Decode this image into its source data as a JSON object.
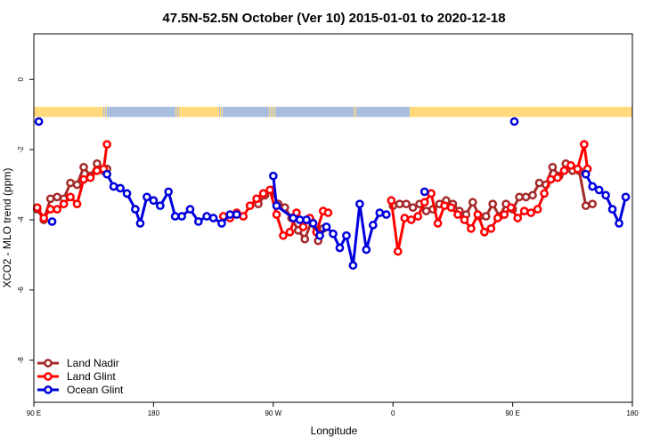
{
  "chart_data": {
    "type": "line",
    "title": "47.5N-52.5N October (Ver 10)   2015-01-01 to 2020-12-18",
    "xlabel": "Longitude",
    "ylabel": "XCO2 - MLO trend (ppm)",
    "xlim": [
      90,
      450
    ],
    "ylim": [
      -9.2,
      1.3
    ],
    "x_ticks": [
      {
        "value": 90,
        "label": "90 E"
      },
      {
        "value": 162,
        "label": "180"
      },
      {
        "value": 234,
        "label": "90 W"
      },
      {
        "value": 306,
        "label": "0"
      },
      {
        "value": 378,
        "label": "90 E"
      },
      {
        "value": 450,
        "label": "180"
      }
    ],
    "y_ticks": [
      0,
      -2,
      -4,
      -6,
      -8
    ],
    "grid": false,
    "legend_position": "bottom-left",
    "land_ocean_strip": {
      "y_range": [
        -1.07,
        -0.78
      ],
      "land_color": "#FFD97A",
      "ocean_color": "#A9BEDF"
    },
    "series": [
      {
        "name": "Land Nadir",
        "color": "#A52A2A",
        "x": [
          92,
          96,
          100,
          104,
          108,
          112,
          116,
          120,
          124,
          128,
          132,
          134,
          225,
          229,
          233,
          237,
          241,
          245,
          249,
          253,
          257,
          261,
          264,
          306,
          310,
          314,
          318,
          322,
          326,
          330,
          334,
          338,
          342,
          346,
          350,
          354,
          358,
          362,
          366,
          370,
          374,
          378,
          382,
          386,
          390,
          394,
          398,
          402,
          406,
          410,
          414,
          418,
          422,
          426
        ],
        "y": [
          -3.7,
          -4.0,
          -3.4,
          -3.35,
          -3.4,
          -2.95,
          -3.0,
          -2.5,
          -2.75,
          -2.4,
          -2.6,
          -2.55,
          -3.55,
          -3.3,
          -3.15,
          -3.55,
          -3.65,
          -3.95,
          -4.3,
          -4.55,
          -4.05,
          -4.6,
          -4.25,
          -3.6,
          -3.55,
          -3.55,
          -3.65,
          -3.55,
          -3.75,
          -3.7,
          -3.55,
          -3.45,
          -3.55,
          -3.75,
          -3.85,
          -3.5,
          -3.9,
          -3.9,
          -3.55,
          -3.9,
          -3.55,
          -3.7,
          -3.35,
          -3.35,
          -3.3,
          -2.95,
          -3.0,
          -2.5,
          -2.75,
          -2.4,
          -2.6,
          -2.6,
          -3.6,
          -3.55
        ]
      },
      {
        "name": "Land Glint",
        "color": "#FF0000",
        "x": [
          92,
          96,
          100,
          104,
          108,
          112,
          116,
          120,
          124,
          128,
          132,
          134,
          204,
          208,
          212,
          216,
          220,
          224,
          228,
          232,
          236,
          240,
          244,
          248,
          252,
          256,
          260,
          264,
          267,
          305,
          309,
          313,
          317,
          321,
          325,
          329,
          333,
          337,
          341,
          345,
          349,
          353,
          357,
          361,
          365,
          369,
          373,
          377,
          381,
          385,
          389,
          393,
          397,
          401,
          405,
          409,
          413,
          417,
          421,
          423
        ],
        "y": [
          -3.65,
          -3.95,
          -3.7,
          -3.7,
          -3.55,
          -3.35,
          -3.55,
          -2.85,
          -2.8,
          -2.6,
          -2.55,
          -1.85,
          -3.9,
          -3.95,
          -3.8,
          -3.9,
          -3.6,
          -3.4,
          -3.25,
          -3.15,
          -3.85,
          -4.45,
          -4.35,
          -3.8,
          -4.2,
          -3.95,
          -4.35,
          -3.75,
          -3.8,
          -3.45,
          -4.9,
          -3.95,
          -4.0,
          -3.9,
          -3.5,
          -3.25,
          -4.1,
          -3.6,
          -3.65,
          -3.85,
          -4.0,
          -4.25,
          -3.85,
          -4.35,
          -4.25,
          -3.95,
          -3.85,
          -3.65,
          -3.95,
          -3.75,
          -3.8,
          -3.7,
          -3.25,
          -2.85,
          -2.8,
          -2.6,
          -2.45,
          -2.55,
          -1.85,
          -2.55
        ]
      },
      {
        "name": "Ocean Glint",
        "color": "#0000DD",
        "x": [
          101,
          134,
          138,
          142,
          146,
          151,
          154,
          158,
          162,
          166,
          171,
          175,
          179,
          184,
          189,
          194,
          198,
          203,
          208,
          212,
          234,
          236,
          246,
          250,
          254,
          258,
          262,
          266,
          270,
          274,
          278,
          282,
          286,
          290,
          294,
          298,
          302,
          325,
          422,
          426,
          430,
          434,
          438,
          442,
          446
        ],
        "y": [
          -4.05,
          -2.7,
          -3.05,
          -3.1,
          -3.25,
          -3.7,
          -4.1,
          -3.35,
          -3.45,
          -3.6,
          -3.2,
          -3.9,
          -3.9,
          -3.7,
          -4.05,
          -3.9,
          -3.95,
          -4.1,
          -3.85,
          -3.85,
          -2.75,
          -3.6,
          -3.95,
          -4.0,
          -4.0,
          -4.1,
          -4.45,
          -4.2,
          -4.4,
          -4.8,
          -4.45,
          -5.3,
          -3.55,
          -4.85,
          -4.15,
          -3.8,
          -3.85,
          -3.2,
          -2.7,
          -3.05,
          -3.15,
          -3.3,
          -3.7,
          -4.1,
          -3.35
        ]
      }
    ],
    "outliers": [
      {
        "series": "Ocean Glint",
        "x": 93,
        "y": -1.2
      },
      {
        "series": "Ocean Glint",
        "x": 379,
        "y": -1.2
      }
    ],
    "legend": [
      {
        "label": "Land Nadir",
        "color": "#A52A2A"
      },
      {
        "label": "Land Glint",
        "color": "#FF0000"
      },
      {
        "label": "Ocean Glint",
        "color": "#0000DD"
      }
    ]
  }
}
